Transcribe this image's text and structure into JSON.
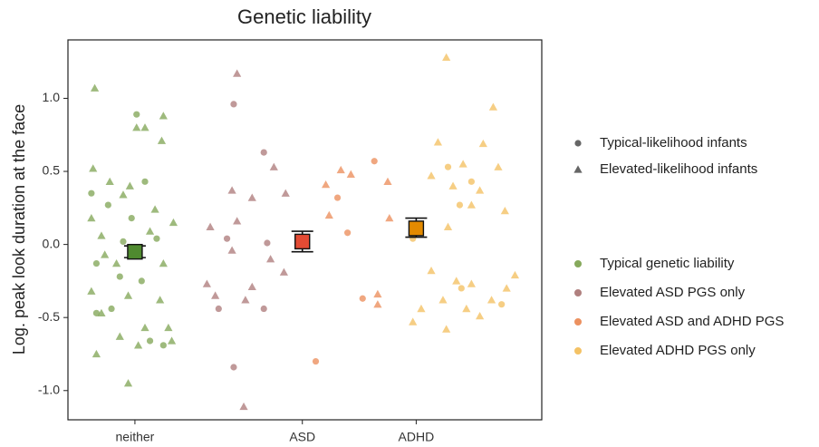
{
  "chart_data": {
    "type": "scatter",
    "title": "Genetic liability",
    "ylabel": "Log. peak look duration at the face",
    "xlim": [
      0.6,
      3.43
    ],
    "ylim": [
      -1.2,
      1.4
    ],
    "xticks": [
      {
        "value": 1,
        "label": "neither"
      },
      {
        "value": 2,
        "label": "ASD"
      },
      {
        "value": 2.68,
        "label": "ADHD"
      }
    ],
    "yticks": [
      {
        "value": 1,
        "label": "1.0"
      },
      0.5,
      {
        "value": 0,
        "label": "0.0"
      },
      -0.5,
      {
        "value": -1,
        "label": "-1.0"
      }
    ],
    "shape_legend": [
      {
        "label": "Typical-likelihood infants",
        "shape": "circle"
      },
      {
        "label": "Elevated-likelihood infants",
        "shape": "triangle"
      }
    ],
    "series": [
      {
        "name": "Typical genetic liability",
        "color": "#86a95c",
        "x": [
          0.76,
          1.17,
          1.06,
          1.01,
          1.16,
          0.75,
          0.85,
          0.97,
          0.74,
          0.93,
          1.12,
          1.23,
          0.8,
          1.09,
          0.89,
          1.17,
          0.74,
          0.96,
          1.15,
          0.8,
          1.06,
          1.2,
          0.91,
          1.02,
          0.77,
          0.96,
          1.22,
          0.82,
          1.01,
          1.06,
          0.74,
          0.84,
          0.98,
          1.13,
          0.77,
          0.91,
          1.04,
          0.86,
          0.77,
          1.09,
          1.17,
          0.93
        ],
        "values": [
          1.07,
          0.88,
          0.8,
          0.8,
          0.71,
          0.52,
          0.43,
          0.4,
          0.18,
          0.34,
          0.24,
          0.15,
          0.06,
          0.09,
          -0.13,
          -0.13,
          -0.32,
          -0.35,
          -0.38,
          -0.47,
          -0.57,
          -0.57,
          -0.63,
          -0.69,
          -0.75,
          -0.95,
          -0.66,
          -0.07,
          0.89,
          0.43,
          0.35,
          0.27,
          0.18,
          0.04,
          -0.13,
          -0.22,
          -0.25,
          -0.44,
          -0.47,
          -0.66,
          -0.69,
          0.02
        ],
        "shapes": [
          "triangle",
          "triangle",
          "triangle",
          "triangle",
          "triangle",
          "triangle",
          "triangle",
          "triangle",
          "triangle",
          "triangle",
          "triangle",
          "triangle",
          "triangle",
          "triangle",
          "triangle",
          "triangle",
          "triangle",
          "triangle",
          "triangle",
          "triangle",
          "triangle",
          "triangle",
          "triangle",
          "triangle",
          "triangle",
          "triangle",
          "triangle",
          "triangle",
          "circle",
          "circle",
          "circle",
          "circle",
          "circle",
          "circle",
          "circle",
          "circle",
          "circle",
          "circle",
          "circle",
          "circle",
          "circle",
          "circle"
        ]
      },
      {
        "name": "Elevated ASD PGS only",
        "color": "#b0807f",
        "x": [
          1.59,
          1.77,
          1.55,
          1.79,
          1.5,
          1.77,
          1.59,
          1.61,
          1.83,
          1.58,
          1.7,
          1.9,
          1.45,
          1.61,
          1.58,
          1.81,
          1.43,
          1.48,
          1.7,
          1.89,
          1.65,
          1.66
        ],
        "values": [
          0.96,
          0.63,
          0.04,
          0.01,
          -0.44,
          -0.44,
          -0.84,
          1.17,
          0.53,
          0.37,
          0.32,
          0.35,
          0.12,
          0.16,
          -0.04,
          -0.1,
          -0.27,
          -0.35,
          -0.29,
          -0.19,
          -1.11,
          -0.38
        ],
        "shapes": [
          "circle",
          "circle",
          "circle",
          "circle",
          "circle",
          "circle",
          "circle",
          "triangle",
          "triangle",
          "triangle",
          "triangle",
          "triangle",
          "triangle",
          "triangle",
          "triangle",
          "triangle",
          "triangle",
          "triangle",
          "triangle",
          "triangle",
          "triangle",
          "triangle"
        ]
      },
      {
        "name": "Elevated ASD and ADHD PGS",
        "color": "#ec9160",
        "x": [
          2.21,
          2.27,
          2.43,
          2.36,
          2.08,
          2.14,
          2.23,
          2.29,
          2.16,
          2.51,
          2.52,
          2.45,
          2.45
        ],
        "values": [
          0.32,
          0.08,
          0.57,
          -0.37,
          -0.8,
          0.41,
          0.51,
          0.48,
          0.2,
          0.43,
          0.18,
          -0.34,
          -0.41
        ],
        "shapes": [
          "circle",
          "circle",
          "circle",
          "circle",
          "circle",
          "triangle",
          "triangle",
          "triangle",
          "triangle",
          "triangle",
          "triangle",
          "triangle",
          "triangle"
        ]
      },
      {
        "name": "Elevated ADHD PGS only",
        "color": "#f4c265",
        "x": [
          2.86,
          3.14,
          2.81,
          3.08,
          2.96,
          3.17,
          2.77,
          2.9,
          3.06,
          3.01,
          3.21,
          2.87,
          2.77,
          2.92,
          3.01,
          3.27,
          3.22,
          2.84,
          3.13,
          2.98,
          2.66,
          2.86,
          3.06,
          2.71,
          2.87,
          3.01,
          2.94,
          2.95,
          3.19,
          2.66
        ],
        "values": [
          1.28,
          0.94,
          0.7,
          0.69,
          0.55,
          0.53,
          0.47,
          0.4,
          0.37,
          0.27,
          0.23,
          0.12,
          -0.18,
          -0.25,
          -0.27,
          -0.21,
          -0.3,
          -0.38,
          -0.38,
          -0.44,
          -0.53,
          -0.58,
          -0.49,
          -0.44,
          0.53,
          0.43,
          0.27,
          -0.3,
          -0.41,
          0.04
        ],
        "shapes": [
          "triangle",
          "triangle",
          "triangle",
          "triangle",
          "triangle",
          "triangle",
          "triangle",
          "triangle",
          "triangle",
          "triangle",
          "triangle",
          "triangle",
          "triangle",
          "triangle",
          "triangle",
          "triangle",
          "triangle",
          "triangle",
          "triangle",
          "triangle",
          "triangle",
          "triangle",
          "triangle",
          "triangle",
          "circle",
          "circle",
          "circle",
          "circle",
          "circle",
          "circle"
        ]
      }
    ],
    "means": [
      {
        "x": 1,
        "value": -0.05,
        "lower": -0.09,
        "upper": -0.01,
        "color": "#4f8a2f"
      },
      {
        "x": 2,
        "value": 0.02,
        "lower": -0.05,
        "upper": 0.09,
        "color": "#e34b34"
      },
      {
        "x": 2.68,
        "value": 0.11,
        "lower": 0.05,
        "upper": 0.18,
        "color": "#e38a00"
      }
    ]
  }
}
